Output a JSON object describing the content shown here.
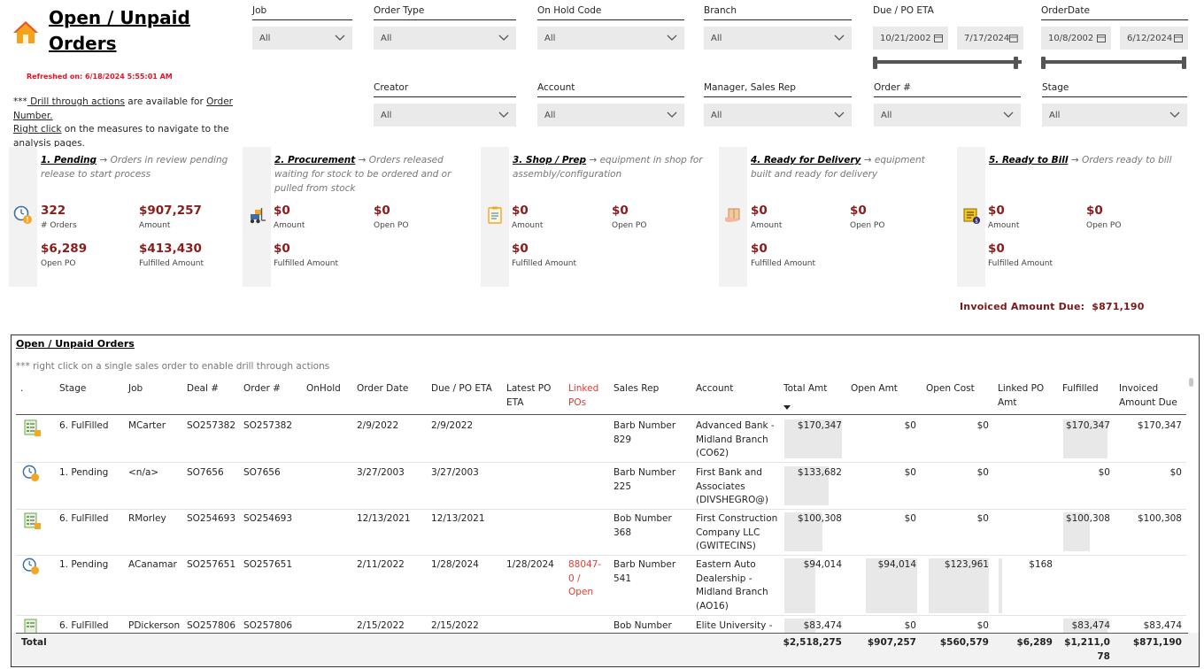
{
  "header": {
    "title": "Open / Unpaid Orders",
    "refreshed": "Refreshed on: 6/18/2024 5:55:01 AM",
    "note_prefix": "***",
    "note_link1": " Drill through actions",
    "note_mid": " are available for ",
    "note_link2": "Order Number.",
    "note_link3": "Right click",
    "note_suffix": " on the measures to navigate to the analysis pages."
  },
  "slicers": {
    "job": {
      "label": "Job",
      "value": "All"
    },
    "order_type": {
      "label": "Order Type",
      "value": "All"
    },
    "on_hold": {
      "label": "On Hold Code",
      "value": "All"
    },
    "branch": {
      "label": "Branch",
      "value": "All"
    },
    "due_eta": {
      "label": "Due / PO ETA",
      "from": "10/21/2002",
      "to": "7/17/2024"
    },
    "order_date": {
      "label": "OrderDate",
      "from": "10/8/2002",
      "to": "6/12/2024"
    },
    "creator": {
      "label": "Creator",
      "value": "All"
    },
    "account": {
      "label": "Account",
      "value": "All"
    },
    "manager": {
      "label": "Manager, Sales Rep",
      "value": "All"
    },
    "order_no": {
      "label": "Order #",
      "value": "All"
    },
    "stage": {
      "label": "Stage",
      "value": "All"
    }
  },
  "cards": {
    "pending": {
      "num": "1. ",
      "name": "Pending",
      "desc": "Orders in review pending release to start process",
      "m1v": "322",
      "m1l": "# Orders",
      "m2v": "$907,257",
      "m2l": "Amount",
      "m3v": "$6,289",
      "m3l": "Open PO",
      "m4v": "$413,430",
      "m4l": "Fulfilled Amount"
    },
    "procurement": {
      "num": "2. ",
      "name": "Procurement",
      "desc": "Orders released waiting for stock to be ordered and or pulled from stock",
      "m1v": "$0",
      "m1l": "Amount",
      "m2v": "$0",
      "m2l": "Open PO",
      "m3v": "$0",
      "m3l": "Fulfilled Amount"
    },
    "shop": {
      "num": "3. ",
      "name": "Shop / Prep",
      "desc": "equipment in shop for assembly/configuration",
      "m1v": "$0",
      "m1l": "Amount",
      "m2v": "$0",
      "m2l": "Open PO",
      "m3v": "$0",
      "m3l": "Fulfilled Amount"
    },
    "delivery": {
      "num": "4. ",
      "name": "Ready for Delivery",
      "desc": "equipment built and ready for  delivery",
      "m1v": "$0",
      "m1l": "Amount",
      "m2v": "$0",
      "m2l": "Open PO",
      "m3v": "$0",
      "m3l": "Fulfilled Amount"
    },
    "bill": {
      "num": "5. ",
      "name": "Ready to Bill",
      "desc": "Orders ready to bill",
      "m1v": "$0",
      "m1l": "Amount",
      "m2v": "$0",
      "m2l": "Open PO",
      "m3v": "$0",
      "m3l": "Fulfilled Amount"
    }
  },
  "arrow": "→",
  "invoiced": {
    "label": "Invoiced Amount Due:",
    "value": "$871,190"
  },
  "table": {
    "title": "Open / Unpaid Orders",
    "note": "*** right click on a single sales order to enable drill through actions",
    "headers": {
      "dot": ".",
      "stage": "Stage",
      "job": "Job",
      "deal": "Deal #",
      "order": "Order #",
      "onhold": "OnHold",
      "orderdate": "Order Date",
      "due": "Due / PO ETA",
      "latest": "Latest PO ETA",
      "linked": "Linked POs",
      "rep": "Sales Rep",
      "account": "Account",
      "total": "Total Amt",
      "open": "Open Amt",
      "cost": "Open Cost",
      "linkedamt": "Linked PO Amt",
      "fulfilled": "Fulfilled",
      "invoiced": "Invoiced Amount Due"
    },
    "rows": [
      {
        "icon": "fulfilled",
        "stage": "6. FulFilled",
        "job": "MCarter",
        "deal": "SO257382",
        "order": "SO257382",
        "orderdate": "2/9/2022",
        "due": "2/9/2022",
        "latest": "",
        "linked": "",
        "rep": "Barb Number 829",
        "account": "Advanced Bank - Midland Branch (CO62)",
        "total": "$170,347",
        "open": "$0",
        "cost": "$0",
        "linkedamt": "",
        "fulfilled": "$170,347",
        "invoiced": "$170,347"
      },
      {
        "icon": "pending",
        "stage": "1. Pending",
        "job": "<n/a>",
        "deal": "SO7656",
        "order": "SO7656",
        "orderdate": "3/27/2003",
        "due": "3/27/2003",
        "latest": "",
        "linked": "",
        "rep": "Barb Number 225",
        "account": "First Bank and Associates (DIVSHEGRO@)",
        "total": "$133,682",
        "open": "$0",
        "cost": "$0",
        "linkedamt": "",
        "fulfilled": "$0",
        "invoiced": "$0"
      },
      {
        "icon": "fulfilled",
        "stage": "6. FulFilled",
        "job": "RMorley",
        "deal": "SO254693",
        "order": "SO254693",
        "orderdate": "12/13/2021",
        "due": "12/13/2021",
        "latest": "",
        "linked": "",
        "rep": "Bob Number 368",
        "account": "First Construction Company LLC (GWITECINS)",
        "total": "$100,308",
        "open": "$0",
        "cost": "$0",
        "linkedamt": "",
        "fulfilled": "$100,308",
        "invoiced": "$100,308"
      },
      {
        "icon": "pending",
        "stage": "1. Pending",
        "job": "ACanamar",
        "deal": "SO257651",
        "order": "SO257651",
        "orderdate": "2/11/2022",
        "due": "1/28/2024",
        "latest": "1/28/2024",
        "linked": "88047-0 / Open",
        "rep": "Barb Number 541",
        "account": "Eastern Auto Dealership - Midland Branch (AO16)",
        "total": "$94,014",
        "open": "$94,014",
        "cost": "$123,961",
        "linkedamt": "$168",
        "fulfilled": "",
        "invoiced": ""
      },
      {
        "icon": "fulfilled",
        "stage": "6. FulFilled",
        "job": "PDickerson",
        "deal": "SO257806",
        "order": "SO257806",
        "orderdate": "2/15/2022",
        "due": "2/15/2022",
        "latest": "",
        "linked": "",
        "rep": "Bob Number",
        "account": "Elite University -",
        "total": "$83,474",
        "open": "$0",
        "cost": "$0",
        "linkedamt": "",
        "fulfilled": "$83,474",
        "invoiced": "$83,474"
      }
    ],
    "totals": {
      "label": "Total",
      "total": "$2,518,275",
      "open": "$907,257",
      "cost": "$560,579",
      "linkedamt": "$6,289",
      "fulfilled": "$1,211,078",
      "invoiced": "$871,190"
    }
  }
}
